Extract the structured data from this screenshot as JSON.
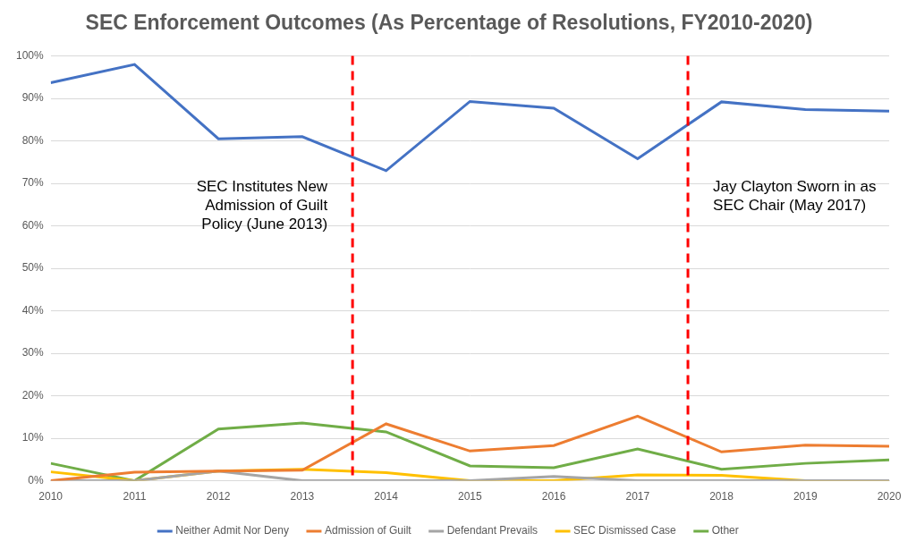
{
  "chart_data": {
    "type": "line",
    "title": "SEC Enforcement Outcomes (As Percentage of Resolutions, FY2010-2020)",
    "x": [
      2010,
      2011,
      2012,
      2013,
      2014,
      2015,
      2016,
      2017,
      2018,
      2019,
      2020
    ],
    "xlim": [
      2010,
      2020
    ],
    "xticks": [
      2010,
      2011,
      2012,
      2013,
      2014,
      2015,
      2016,
      2017,
      2018,
      2019,
      2020
    ],
    "ylim": [
      0,
      100
    ],
    "yticks": [
      {
        "value": 0,
        "label": "0%"
      },
      {
        "value": 10,
        "label": "10%"
      },
      {
        "value": 20,
        "label": "20%"
      },
      {
        "value": 30,
        "label": "30%"
      },
      {
        "value": 40,
        "label": "40%"
      },
      {
        "value": 50,
        "label": "50%"
      },
      {
        "value": 60,
        "label": "60%"
      },
      {
        "value": 70,
        "label": "70%"
      },
      {
        "value": 80,
        "label": "80%"
      },
      {
        "value": 90,
        "label": "90%"
      },
      {
        "value": 100,
        "label": "100%"
      }
    ],
    "grid": true,
    "legend": "bottom",
    "series": [
      {
        "name": "Neither Admit Nor Deny",
        "color": "#4472c4",
        "values": [
          93.7,
          98,
          80.5,
          81,
          73,
          89.3,
          87.7,
          75.8,
          89.2,
          87.4,
          87
        ]
      },
      {
        "name": "Admission of Guilt",
        "color": "#ed7d31",
        "values": [
          0,
          2,
          2.3,
          2.5,
          13.4,
          7,
          8.3,
          15.2,
          6.8,
          8.4,
          8.1
        ]
      },
      {
        "name": "Defendant Prevails",
        "color": "#a5a5a5",
        "values": [
          0,
          0,
          2.3,
          0,
          0,
          0,
          1,
          0,
          0,
          0,
          0
        ]
      },
      {
        "name": "SEC Dismissed Case",
        "color": "#ffc000",
        "values": [
          2.1,
          0,
          2.3,
          2.7,
          1.9,
          0,
          0,
          1.4,
          1.3,
          0,
          0
        ]
      },
      {
        "name": "Other",
        "color": "#70ad47",
        "values": [
          4.1,
          0,
          12.2,
          13.6,
          11.5,
          3.5,
          3.1,
          7.5,
          2.7,
          4.1,
          4.9
        ]
      }
    ],
    "annotations": [
      {
        "x": 2013.6,
        "text": [
          "SEC Institutes New",
          "Admission of Guilt",
          "Policy (June 2013)"
        ],
        "color": "#ff0000",
        "line_style": "dashed"
      },
      {
        "x": 2017.6,
        "text": [
          "Jay Clayton Sworn in as",
          "SEC Chair (May 2017)"
        ],
        "color": "#ff0000",
        "line_style": "dashed"
      }
    ]
  }
}
